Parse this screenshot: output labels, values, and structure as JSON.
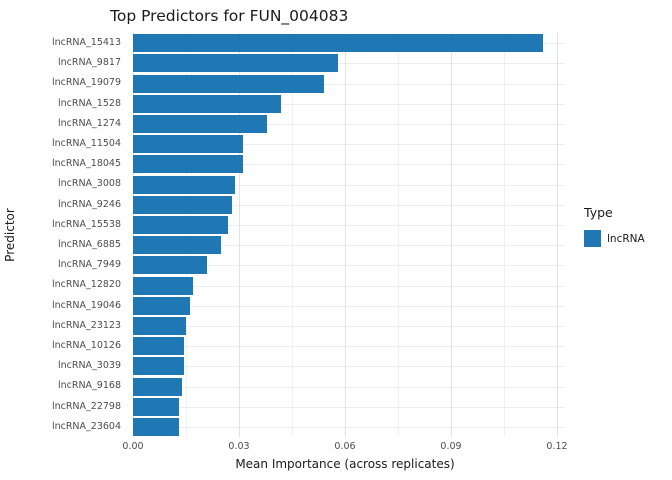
{
  "title": "Top Predictors for FUN_004083",
  "legend": {
    "title": "Type",
    "items": [
      {
        "label": "lncRNA",
        "color": "#1f77b4"
      }
    ]
  },
  "chart_data": {
    "type": "bar",
    "orientation": "horizontal",
    "title": "Top Predictors for FUN_004083",
    "xlabel": "Mean Importance (across replicates)",
    "ylabel": "Predictor",
    "series_name": "lncRNA",
    "bar_color": "#1f77b4",
    "categories": [
      "lncRNA_15413",
      "lncRNA_9817",
      "lncRNA_19079",
      "lncRNA_1528",
      "lncRNA_1274",
      "lncRNA_11504",
      "lncRNA_18045",
      "lncRNA_3008",
      "lncRNA_9246",
      "lncRNA_15538",
      "lncRNA_6885",
      "lncRNA_7949",
      "lncRNA_12820",
      "lncRNA_19046",
      "lncRNA_23123",
      "lncRNA_10126",
      "lncRNA_3039",
      "lncRNA_9168",
      "lncRNA_22798",
      "lncRNA_23604"
    ],
    "values": [
      0.116,
      0.058,
      0.054,
      0.042,
      0.038,
      0.031,
      0.031,
      0.029,
      0.028,
      0.027,
      0.025,
      0.021,
      0.017,
      0.016,
      0.015,
      0.0145,
      0.0145,
      0.014,
      0.013,
      0.013
    ],
    "xlim": [
      0,
      0.12
    ],
    "xticks": [
      0,
      0.03,
      0.06,
      0.09,
      0.12
    ],
    "xtick_labels": [
      "0.00",
      "0.03",
      "0.06",
      "0.09",
      "0.12"
    ],
    "minor_xticks": [
      0.015,
      0.045,
      0.075,
      0.105
    ],
    "grid": true,
    "legend_position": "right"
  }
}
